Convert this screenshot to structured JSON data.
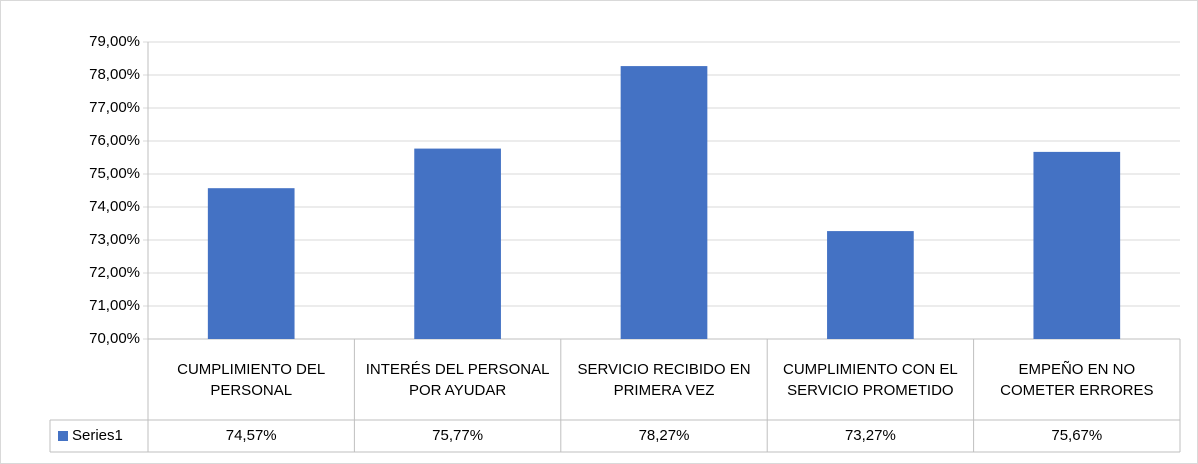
{
  "chart_data": {
    "type": "bar",
    "categories": [
      "CUMPLIMIENTO DEL PERSONAL",
      "INTERÉS DEL PERSONAL POR AYUDAR",
      "SERVICIO RECIBIDO EN PRIMERA VEZ",
      "CUMPLIMIENTO CON EL SERVICIO PROMETIDO",
      "EMPEÑO EN NO COMETER ERRORES"
    ],
    "series": [
      {
        "name": "Series1",
        "color": "#4472c4",
        "values": [
          74.57,
          75.77,
          78.27,
          73.27,
          75.67
        ],
        "value_labels": [
          "74,57%",
          "75,77%",
          "78,27%",
          "73,27%",
          "75,67%"
        ]
      }
    ],
    "ylim": [
      70,
      79
    ],
    "yticks": [
      {
        "value": 70,
        "label": "70,00%"
      },
      {
        "value": 71,
        "label": "71,00%"
      },
      {
        "value": 72,
        "label": "72,00%"
      },
      {
        "value": 73,
        "label": "73,00%"
      },
      {
        "value": 74,
        "label": "74,00%"
      },
      {
        "value": 75,
        "label": "75,00%"
      },
      {
        "value": 76,
        "label": "76,00%"
      },
      {
        "value": 77,
        "label": "77,00%"
      },
      {
        "value": 78,
        "label": "78,00%"
      },
      {
        "value": 79,
        "label": "79,00%"
      }
    ],
    "grid": true,
    "data_table": true
  }
}
